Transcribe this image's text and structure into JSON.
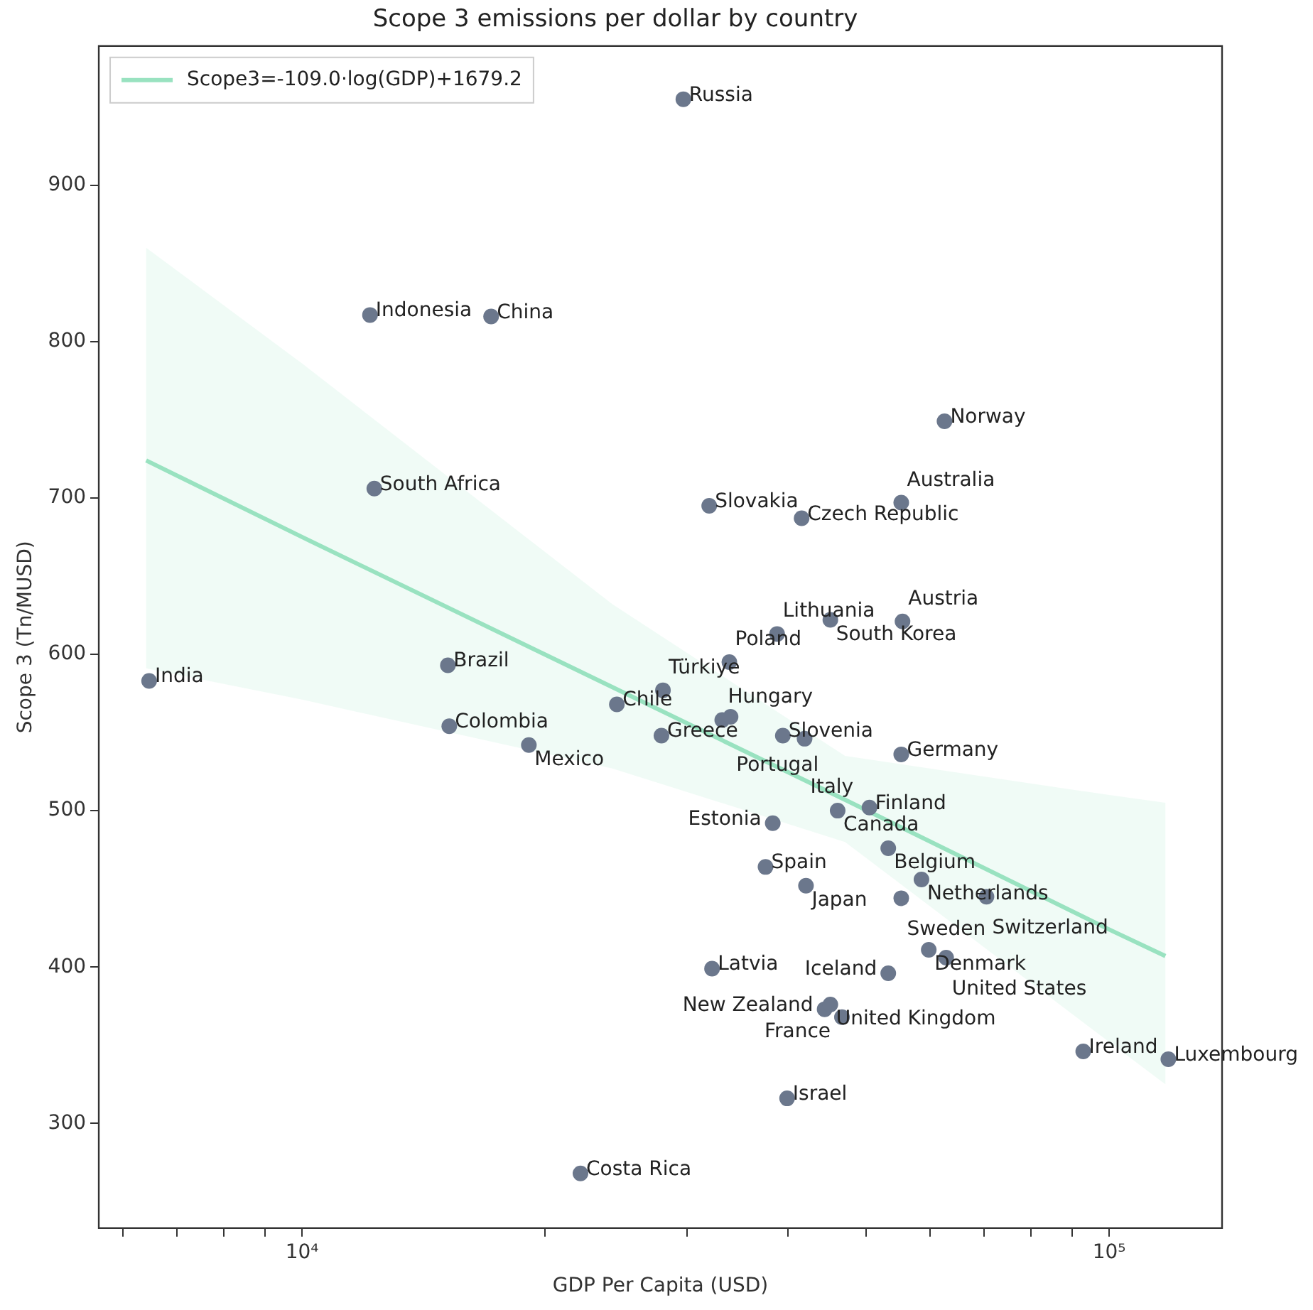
{
  "chart_data": {
    "type": "scatter",
    "title": "Scope 3 emissions per dollar by country",
    "xlabel": "GDP Per Capita (USD)",
    "ylabel": "Scope 3 (Tn/MUSD)",
    "log": "x",
    "grid": false,
    "legend": "top left",
    "xlim": [
      5600,
      138000
    ],
    "xticks": [
      {
        "value": 6000,
        "label": null
      },
      {
        "value": 7000,
        "label": null
      },
      {
        "value": 8000,
        "label": null
      },
      {
        "value": 9000,
        "label": null
      },
      {
        "value": 10000,
        "label": "10⁴"
      },
      {
        "value": 20000,
        "label": null
      },
      {
        "value": 30000,
        "label": null
      },
      {
        "value": 40000,
        "label": null
      },
      {
        "value": 50000,
        "label": null
      },
      {
        "value": 60000,
        "label": null
      },
      {
        "value": 70000,
        "label": null
      },
      {
        "value": 80000,
        "label": null
      },
      {
        "value": 90000,
        "label": null
      },
      {
        "value": 100000,
        "label": "10⁵"
      }
    ],
    "ylim": [
      233,
      989
    ],
    "yticks": [
      300,
      400,
      500,
      600,
      700,
      800,
      900
    ],
    "series": [
      {
        "type": "line",
        "name": "Scope3=-109.0·log(GDP)+1679.2",
        "color": "#99e2c0",
        "line_style": "solid",
        "marker": "none",
        "x": [
          6410,
          10000,
          24240,
          47070,
          100000,
          117400
        ],
        "values": [
          724,
          675,
          579,
          507,
          424,
          407
        ],
        "lower": [
          591,
          571,
          527,
          480,
          352,
          325
        ],
        "upper": [
          860,
          786,
          632,
          535,
          510,
          505
        ]
      },
      {
        "type": "scatter",
        "color": "#6b778c",
        "marker": "circle",
        "x": [
          6465,
          15160,
          15220,
          19100,
          24550,
          22130,
          27880,
          28000,
          33160,
          33960,
          33840,
          38780,
          45140,
          55460,
          31950,
          41590,
          55260,
          62520,
          29680,
          12140,
          17150,
          12290,
          39420,
          41940,
          55260,
          46090,
          50470,
          38300,
          53250,
          37520,
          42110,
          58540,
          55260,
          70470,
          59770,
          62810,
          53250,
          32210,
          44410,
          45140,
          46660,
          39900,
          92870,
          118400
        ],
        "values": [
          583,
          593,
          554,
          542,
          568,
          268,
          548,
          577,
          558,
          560,
          595,
          613,
          622,
          621,
          695,
          687,
          697,
          749,
          955,
          817,
          816,
          706,
          548,
          546,
          536,
          500,
          502,
          492,
          476,
          464,
          452,
          456,
          444,
          445,
          411,
          406,
          396,
          399,
          373,
          376,
          368,
          316,
          346,
          341
        ]
      }
    ],
    "annotations": [
      {
        "text": "India",
        "x": 6465,
        "y": 583
      },
      {
        "text": "Brazil",
        "x": 15160,
        "y": 593
      },
      {
        "text": "Colombia",
        "x": 15220,
        "y": 554
      },
      {
        "text": "Mexico",
        "x": 19100,
        "y": 542
      },
      {
        "text": "Chile",
        "x": 24550,
        "y": 568
      },
      {
        "text": "Costa Rica",
        "x": 22130,
        "y": 268
      },
      {
        "text": "Greece",
        "x": 27880,
        "y": 548
      },
      {
        "text": "Türkiye",
        "x": 28000,
        "y": 577
      },
      {
        "text": "Hungary",
        "x": 33160,
        "y": 558
      },
      {
        "text": "Portugal",
        "x": 33960,
        "y": 560
      },
      {
        "text": "Poland",
        "x": 33840,
        "y": 595
      },
      {
        "text": "Lithuania",
        "x": 38780,
        "y": 613
      },
      {
        "text": "South Korea",
        "x": 45140,
        "y": 622
      },
      {
        "text": "Austria",
        "x": 55460,
        "y": 621
      },
      {
        "text": "Slovakia",
        "x": 31950,
        "y": 695
      },
      {
        "text": "Czech Republic",
        "x": 41590,
        "y": 687
      },
      {
        "text": "Australia",
        "x": 55260,
        "y": 697
      },
      {
        "text": "Norway",
        "x": 62520,
        "y": 749
      },
      {
        "text": "Russia",
        "x": 29680,
        "y": 955
      },
      {
        "text": "Indonesia",
        "x": 12140,
        "y": 817
      },
      {
        "text": "China",
        "x": 17150,
        "y": 816
      },
      {
        "text": "South Africa",
        "x": 12290,
        "y": 706
      },
      {
        "text": "Slovenia",
        "x": 39420,
        "y": 548
      },
      {
        "text": "Italy",
        "x": 41940,
        "y": 546
      },
      {
        "text": "Germany",
        "x": 55260,
        "y": 536
      },
      {
        "text": "Canada",
        "x": 46090,
        "y": 500
      },
      {
        "text": "Finland",
        "x": 50470,
        "y": 502
      },
      {
        "text": "Estonia",
        "x": 38300,
        "y": 492
      },
      {
        "text": "Belgium",
        "x": 53250,
        "y": 476
      },
      {
        "text": "Spain",
        "x": 37520,
        "y": 464
      },
      {
        "text": "Japan",
        "x": 42110,
        "y": 452
      },
      {
        "text": "Netherlands",
        "x": 58540,
        "y": 456
      },
      {
        "text": "Sweden",
        "x": 55260,
        "y": 444
      },
      {
        "text": "Switzerland",
        "x": 70470,
        "y": 445
      },
      {
        "text": "Denmark",
        "x": 59770,
        "y": 411
      },
      {
        "text": "United States",
        "x": 62810,
        "y": 406
      },
      {
        "text": "Iceland",
        "x": 53250,
        "y": 396
      },
      {
        "text": "Latvia",
        "x": 32210,
        "y": 399
      },
      {
        "text": "New Zealand",
        "x": 44410,
        "y": 373
      },
      {
        "text": "United Kingdom",
        "x": 45140,
        "y": 376
      },
      {
        "text": "France",
        "x": 46660,
        "y": 368
      },
      {
        "text": "Israel",
        "x": 39900,
        "y": 316
      },
      {
        "text": "Ireland",
        "x": 92870,
        "y": 346
      },
      {
        "text": "Luxembourg",
        "x": 118400,
        "y": 341
      }
    ]
  }
}
